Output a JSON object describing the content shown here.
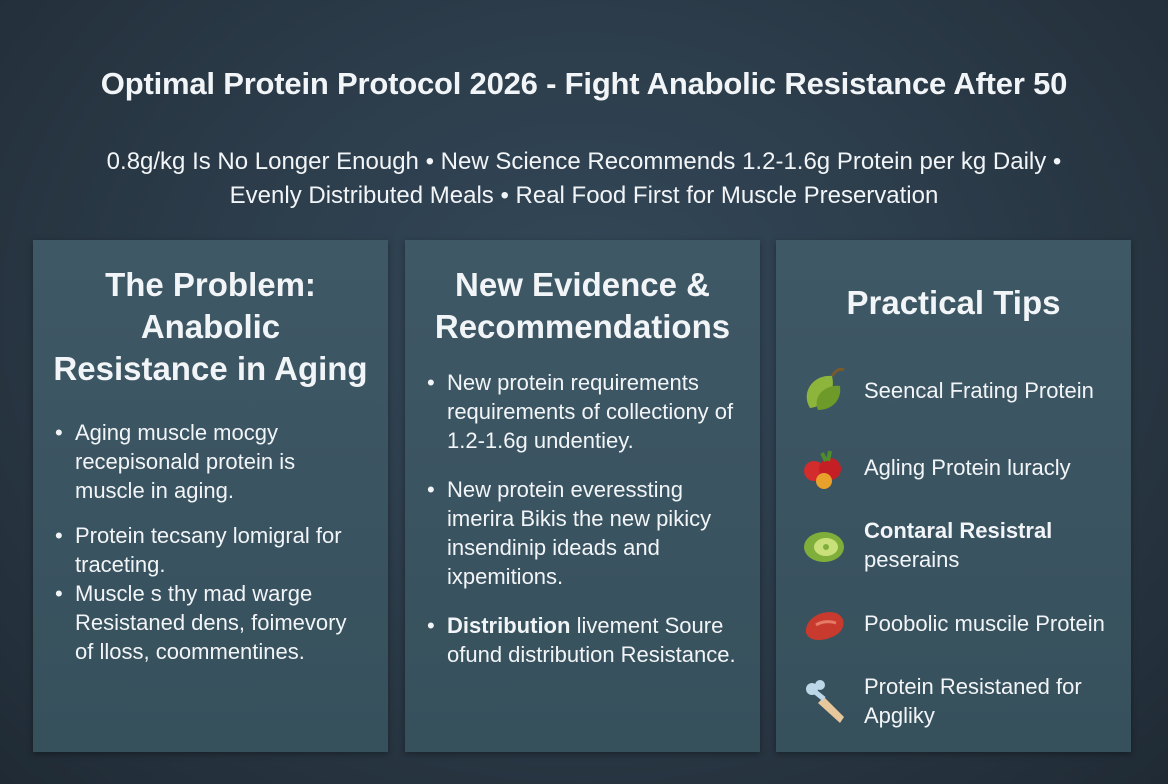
{
  "header": {
    "title": "Optimal Protein Protocol 2026 - Fight Anabolic Resistance After 50",
    "subtitle_lines": [
      "0.8g/kg Is No Longer Enough • New Science Recommends 1.2-1.6g Protein per kg Daily •",
      "Evenly Distributed Meals  • Real Food First for Muscle Preservation"
    ]
  },
  "panels": [
    {
      "heading": "The Problem: Anabolic Resistance in Aging",
      "bullets": [
        {
          "text": "Aging muscle mocgy recepisonald protein is muscle in aging."
        },
        {
          "text": "Protein tecsany lomigral for traceting."
        },
        {
          "text": "Muscle s thy mad warge Resistaned dens, foimevory of lloss, coommentines."
        }
      ]
    },
    {
      "heading": "New Evidence & Recommendations",
      "bullets": [
        {
          "text": "New protein requirements requirements of collectiony of 1.2-1.6g undentiey."
        },
        {
          "text": "New protein everessting imerira Bikis the new pikicy insendinip ideads and ixpemitions."
        },
        {
          "bold": "Distribution",
          "text": "livement Soure ofund distribution Resistance."
        }
      ]
    },
    {
      "heading": "Practical Tips",
      "tips": [
        {
          "text": "Seencal Frating Protein"
        },
        {
          "text": "Agling Protein luracly"
        },
        {
          "bold": "Contaral Resistral",
          "text": "peserains"
        },
        {
          "text": "Poobolic muscile Protein"
        },
        {
          "text": "Protein Resistaned for Apgliky"
        }
      ]
    }
  ]
}
